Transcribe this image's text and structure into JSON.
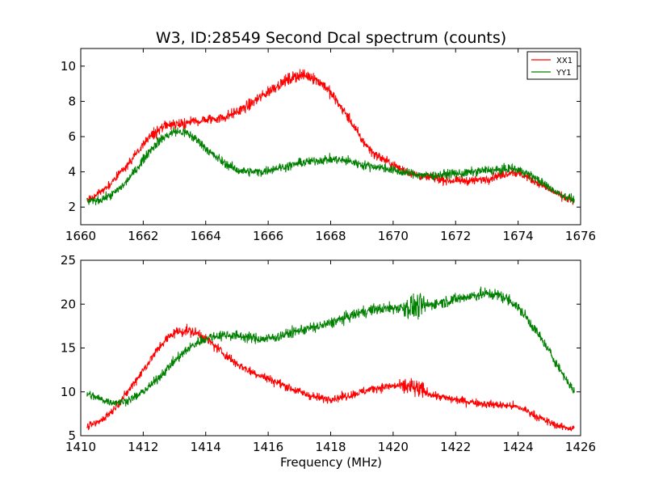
{
  "figure": {
    "title": "W3, ID:28549 Second Dcal spectrum (counts)",
    "xlabel": "Frequency (MHz)"
  },
  "colors": {
    "XX1": "#ff0000",
    "YY1": "#008000"
  },
  "chart_data": [
    {
      "type": "line",
      "title": "W3, ID:28549 Second Dcal spectrum (counts)",
      "xlabel": "",
      "ylabel": "",
      "xlim": [
        1660,
        1676
      ],
      "ylim": [
        1,
        11
      ],
      "xticks": [
        1660,
        1662,
        1664,
        1666,
        1668,
        1670,
        1672,
        1674,
        1676
      ],
      "yticks": [
        2,
        4,
        6,
        8,
        10
      ],
      "grid": false,
      "legend": {
        "placement": "top-right",
        "entries": [
          "XX1",
          "YY1"
        ]
      },
      "noise": 0.35,
      "series": [
        {
          "name": "XX1",
          "color": "#ff0000",
          "x": [
            1660.2,
            1660.6,
            1661.0,
            1661.4,
            1661.8,
            1662.2,
            1662.6,
            1663.0,
            1663.4,
            1663.8,
            1664.2,
            1664.6,
            1665.0,
            1665.4,
            1665.8,
            1666.2,
            1666.6,
            1667.0,
            1667.4,
            1667.8,
            1668.2,
            1668.6,
            1669.0,
            1669.4,
            1669.8,
            1670.2,
            1670.6,
            1671.0,
            1671.4,
            1671.8,
            1672.2,
            1672.6,
            1673.0,
            1673.4,
            1673.8,
            1674.2,
            1674.6,
            1675.0,
            1675.4,
            1675.8
          ],
          "y": [
            2.4,
            2.8,
            3.4,
            4.2,
            5.1,
            6.0,
            6.5,
            6.7,
            6.8,
            6.9,
            7.0,
            7.1,
            7.4,
            7.8,
            8.3,
            8.8,
            9.2,
            9.5,
            9.4,
            8.9,
            8.0,
            7.0,
            5.8,
            5.0,
            4.6,
            4.2,
            3.9,
            3.7,
            3.6,
            3.5,
            3.5,
            3.5,
            3.6,
            3.8,
            4.0,
            3.8,
            3.4,
            3.0,
            2.6,
            2.3
          ]
        },
        {
          "name": "YY1",
          "color": "#008000",
          "x": [
            1660.2,
            1660.6,
            1661.0,
            1661.4,
            1661.8,
            1662.2,
            1662.6,
            1663.0,
            1663.4,
            1663.8,
            1664.2,
            1664.6,
            1665.0,
            1665.4,
            1665.8,
            1666.2,
            1666.6,
            1667.0,
            1667.4,
            1667.8,
            1668.2,
            1668.6,
            1669.0,
            1669.4,
            1669.8,
            1670.2,
            1670.6,
            1671.0,
            1671.4,
            1671.8,
            1672.2,
            1672.6,
            1673.0,
            1673.4,
            1673.8,
            1674.2,
            1674.6,
            1675.0,
            1675.4,
            1675.8
          ],
          "y": [
            2.3,
            2.4,
            2.7,
            3.3,
            4.2,
            5.2,
            5.9,
            6.3,
            6.2,
            5.7,
            5.0,
            4.5,
            4.1,
            4.0,
            4.0,
            4.2,
            4.3,
            4.5,
            4.6,
            4.7,
            4.7,
            4.6,
            4.4,
            4.3,
            4.2,
            4.0,
            3.9,
            3.8,
            3.8,
            3.9,
            3.9,
            4.0,
            4.1,
            4.1,
            4.2,
            4.0,
            3.6,
            3.1,
            2.7,
            2.4
          ]
        }
      ]
    },
    {
      "type": "line",
      "title": "",
      "xlabel": "Frequency (MHz)",
      "ylabel": "",
      "xlim": [
        1410,
        1426
      ],
      "ylim": [
        5,
        25
      ],
      "xticks": [
        1410,
        1412,
        1414,
        1416,
        1418,
        1420,
        1422,
        1424,
        1426
      ],
      "yticks": [
        5,
        10,
        15,
        20,
        25
      ],
      "grid": false,
      "noise": 0.7,
      "series": [
        {
          "name": "XX1",
          "color": "#ff0000",
          "x": [
            1410.2,
            1410.6,
            1411.0,
            1411.4,
            1411.8,
            1412.2,
            1412.6,
            1413.0,
            1413.4,
            1413.8,
            1414.2,
            1414.6,
            1415.0,
            1415.4,
            1415.8,
            1416.2,
            1416.6,
            1417.0,
            1417.4,
            1417.8,
            1418.2,
            1418.6,
            1419.0,
            1419.4,
            1419.8,
            1420.2,
            1420.6,
            1421.0,
            1421.4,
            1421.8,
            1422.2,
            1422.6,
            1423.0,
            1423.4,
            1423.8,
            1424.2,
            1424.6,
            1425.0,
            1425.4,
            1425.8
          ],
          "y": [
            6.0,
            6.6,
            7.8,
            9.5,
            11.5,
            13.5,
            15.5,
            16.8,
            17.0,
            16.6,
            15.5,
            14.3,
            13.2,
            12.4,
            11.8,
            11.2,
            10.6,
            10.0,
            9.5,
            9.2,
            9.3,
            9.6,
            10.0,
            10.4,
            10.6,
            10.7,
            10.5,
            10.0,
            9.5,
            9.2,
            9.0,
            8.8,
            8.6,
            8.5,
            8.4,
            8.0,
            7.2,
            6.5,
            6.0,
            5.8
          ]
        },
        {
          "name": "YY1",
          "color": "#008000",
          "x": [
            1410.2,
            1410.6,
            1411.0,
            1411.4,
            1411.8,
            1412.2,
            1412.6,
            1413.0,
            1413.4,
            1413.8,
            1414.2,
            1414.6,
            1415.0,
            1415.4,
            1415.8,
            1416.2,
            1416.6,
            1417.0,
            1417.4,
            1417.8,
            1418.2,
            1418.6,
            1419.0,
            1419.4,
            1419.8,
            1420.2,
            1420.6,
            1421.0,
            1421.4,
            1421.8,
            1422.2,
            1422.6,
            1423.0,
            1423.4,
            1423.8,
            1424.2,
            1424.6,
            1425.0,
            1425.4,
            1425.8
          ],
          "y": [
            9.8,
            9.2,
            8.8,
            8.9,
            9.5,
            10.6,
            12.0,
            13.5,
            14.8,
            15.8,
            16.3,
            16.5,
            16.4,
            16.2,
            16.0,
            16.2,
            16.6,
            17.0,
            17.3,
            17.6,
            18.1,
            18.6,
            19.1,
            19.4,
            19.5,
            19.6,
            19.7,
            19.8,
            20.1,
            20.4,
            20.7,
            21.0,
            21.2,
            21.0,
            20.3,
            18.8,
            16.8,
            14.6,
            12.2,
            10.0
          ]
        }
      ]
    }
  ]
}
